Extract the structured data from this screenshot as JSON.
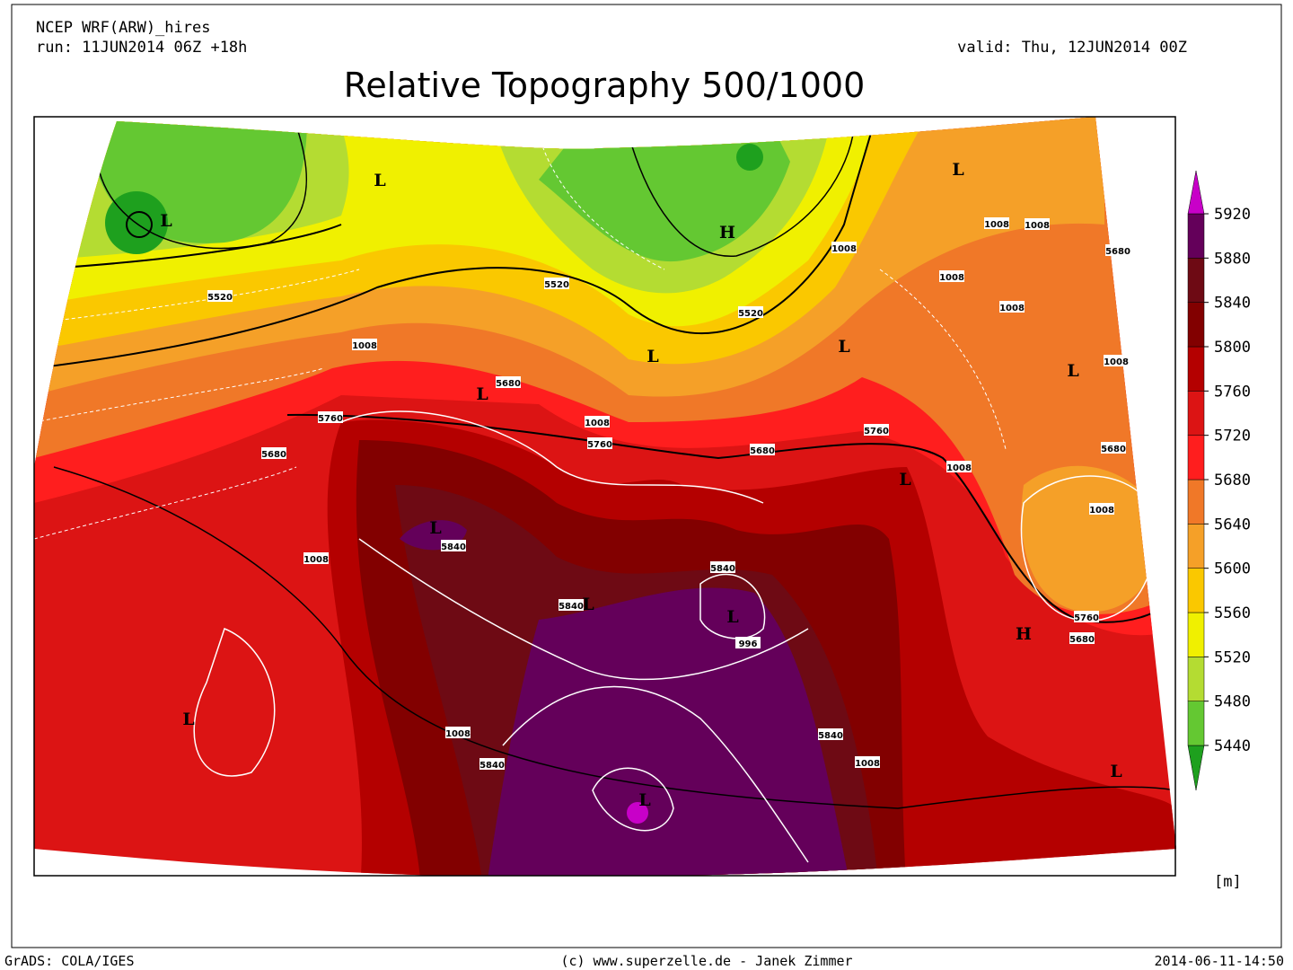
{
  "header": {
    "model": "NCEP WRF(ARW)_hires",
    "run": "run: 11JUN2014 06Z +18h",
    "valid": "valid: Thu, 12JUN2014 00Z",
    "title": "Relative Topography 500/1000"
  },
  "colorbar": {
    "levels": [
      5440,
      5480,
      5520,
      5560,
      5600,
      5640,
      5680,
      5720,
      5760,
      5800,
      5840,
      5880,
      5920
    ],
    "colors": [
      "#1ea01e",
      "#64c832",
      "#b4dc32",
      "#f0f000",
      "#fac800",
      "#f5a028",
      "#f07828",
      "#ff1e1e",
      "#dc1414",
      "#b40000",
      "#820000",
      "#6e0a14",
      "#64005a",
      "#c800c8"
    ],
    "unit": "[m]"
  },
  "map": {
    "pressure_centers": [
      "L",
      "L",
      "H",
      "L",
      "L",
      "L",
      "L",
      "L",
      "L",
      "L",
      "L",
      "L",
      "H",
      "L",
      "L",
      "L"
    ],
    "contour_labels": [
      "5520",
      "5520",
      "5520",
      "1008",
      "5680",
      "1008",
      "5760",
      "5760",
      "5760",
      "5680",
      "5680",
      "1008",
      "1008",
      "5840",
      "5840",
      "5840",
      "996",
      "1008",
      "5840",
      "5840",
      "1008",
      "5760",
      "5680",
      "1008",
      "5680",
      "1008",
      "1008",
      "1008",
      "1008",
      "1008",
      "5680",
      "1008"
    ]
  },
  "footer": {
    "software": "GrADS: COLA/IGES",
    "credit": "(c) www.superzelle.de - Janek Zimmer",
    "timestamp": "2014-06-11-14:50"
  }
}
